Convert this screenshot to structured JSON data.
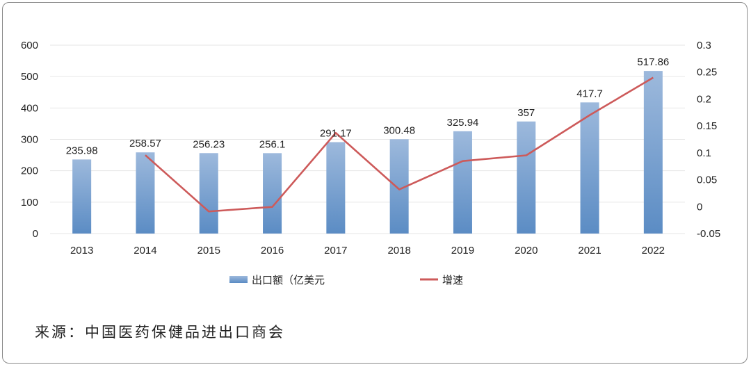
{
  "chart_data": {
    "type": "bar",
    "categories": [
      "2013",
      "2014",
      "2015",
      "2016",
      "2017",
      "2018",
      "2019",
      "2020",
      "2021",
      "2022"
    ],
    "series": [
      {
        "name": "出口额（亿美元",
        "type": "bar",
        "axis": "left",
        "values": [
          235.98,
          258.57,
          256.23,
          256.1,
          291.17,
          300.48,
          325.94,
          357,
          417.7,
          517.86
        ],
        "labels": [
          "235.98",
          "258.57",
          "256.23",
          "256.1",
          "291.17",
          "300.48",
          "325.94",
          "357",
          "417.7",
          "517.86"
        ]
      },
      {
        "name": "增速",
        "type": "line",
        "axis": "right",
        "values": [
          null,
          0.0957,
          -0.009,
          -0.0005,
          0.137,
          0.032,
          0.0847,
          0.0953,
          0.17,
          0.2398
        ]
      }
    ],
    "y_left": {
      "ylim": [
        0,
        600
      ],
      "ticks": [
        "0",
        "100",
        "200",
        "300",
        "400",
        "500",
        "600"
      ]
    },
    "y_right": {
      "ylim": [
        -0.05,
        0.3
      ],
      "ticks": [
        "-0.05",
        "0",
        "0.05",
        "0.1",
        "0.15",
        "0.2",
        "0.25",
        "0.3"
      ]
    },
    "legend_position": "bottom",
    "grid": true,
    "colors": {
      "bar_top": "#9db9dc",
      "bar_bottom": "#5b8cc4",
      "line": "#cd5a5a",
      "grid": "#e6e6e6"
    }
  },
  "source": "来源：中国医药保健品进出口商会"
}
